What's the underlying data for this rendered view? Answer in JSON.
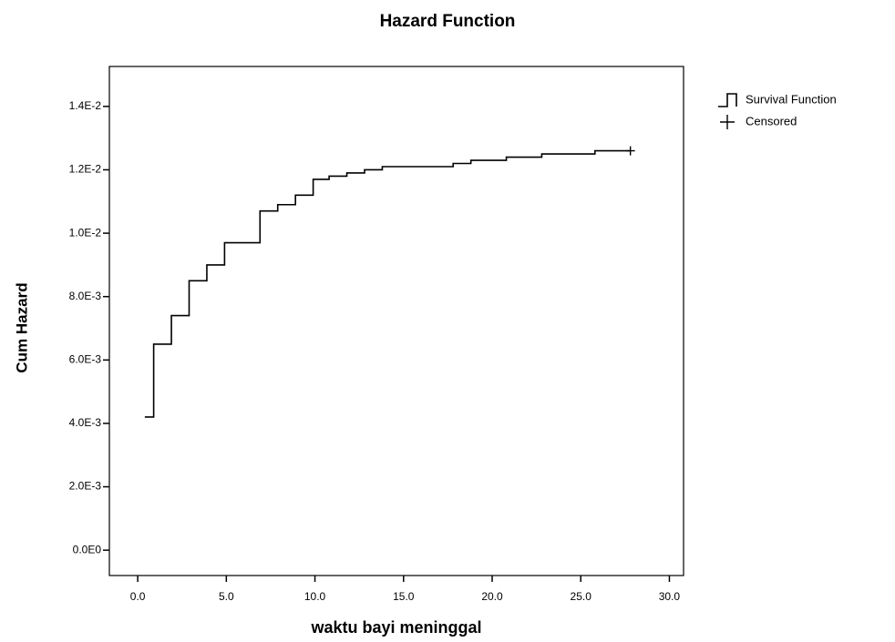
{
  "chart_data": {
    "type": "step",
    "title": "Hazard Function",
    "y_label": "Cum Hazard",
    "x_label": "waktu bayi meninggal",
    "xlim": [
      -1.6,
      30.8
    ],
    "ylim": [
      -0.0008,
      0.01526
    ],
    "xticks": [
      {
        "value": 0,
        "label": "0.0"
      },
      {
        "value": 5,
        "label": "5.0"
      },
      {
        "value": 10,
        "label": "10.0"
      },
      {
        "value": 15,
        "label": "15.0"
      },
      {
        "value": 20,
        "label": "20.0"
      },
      {
        "value": 25,
        "label": "25.0"
      },
      {
        "value": 30,
        "label": "30.0"
      }
    ],
    "yticks": [
      {
        "value": 0,
        "label": "0.0E0"
      },
      {
        "value": 0.002,
        "label": "2.0E-3"
      },
      {
        "value": 0.004,
        "label": "4.0E-3"
      },
      {
        "value": 0.006,
        "label": "6.0E-3"
      },
      {
        "value": 0.008,
        "label": "8.0E-3"
      },
      {
        "value": 0.01,
        "label": "1.0E-2"
      },
      {
        "value": 0.012,
        "label": "1.2E-2"
      },
      {
        "value": 0.014,
        "label": "1.4E-2"
      }
    ],
    "series": [
      {
        "name": "Survival Function",
        "color": "#000000",
        "x": [
          0.4,
          0.9,
          1.9,
          2.9,
          3.9,
          4.9,
          6.9,
          7.9,
          8.9,
          9.9,
          10.8,
          11.8,
          12.8,
          13.8,
          17.8,
          18.8,
          20.8,
          22.8,
          25.8,
          27.8
        ],
        "values": [
          0.0042,
          0.0065,
          0.0074,
          0.0085,
          0.009,
          0.0097,
          0.0107,
          0.0109,
          0.0112,
          0.0117,
          0.0118,
          0.0119,
          0.012,
          0.0121,
          0.0122,
          0.0123,
          0.0124,
          0.0125,
          0.0126,
          0.0126
        ]
      },
      {
        "name": "Censored",
        "color": "#000000",
        "marker": "plus",
        "x": [
          27.8
        ],
        "values": [
          0.0126
        ]
      }
    ]
  }
}
